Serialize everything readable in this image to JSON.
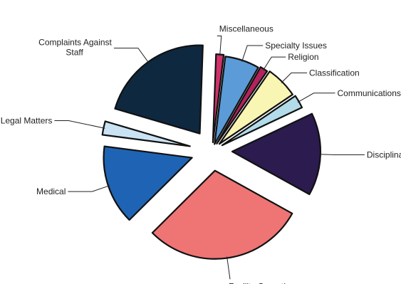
{
  "chart_data": {
    "type": "pie",
    "exploded": true,
    "slices": [
      {
        "label": "Miscellaneous",
        "value": 1.4,
        "color": "#d1316a"
      },
      {
        "label": "Specialty Issues",
        "value": 6.3,
        "color": "#5b9bd8"
      },
      {
        "label": "Religion",
        "value": 1.4,
        "color": "#b3245c"
      },
      {
        "label": "Classification",
        "value": 5.9,
        "color": "#f8f6b2"
      },
      {
        "label": "Communications",
        "value": 2.4,
        "color": "#b3dcea"
      },
      {
        "label": "Disciplinary",
        "value": 15.1,
        "color": "#2b1b4e"
      },
      {
        "label": "Facility Operations",
        "value": 29.5,
        "color": "#ef7474"
      },
      {
        "label": "Medical",
        "value": 14.5,
        "color": "#1f64b4"
      },
      {
        "label": "Legal Matters",
        "value": 2.5,
        "color": "#c9e3f4"
      },
      {
        "label": "Complaints Against Staff",
        "value": 21.0,
        "color": "#0e2840"
      }
    ]
  }
}
